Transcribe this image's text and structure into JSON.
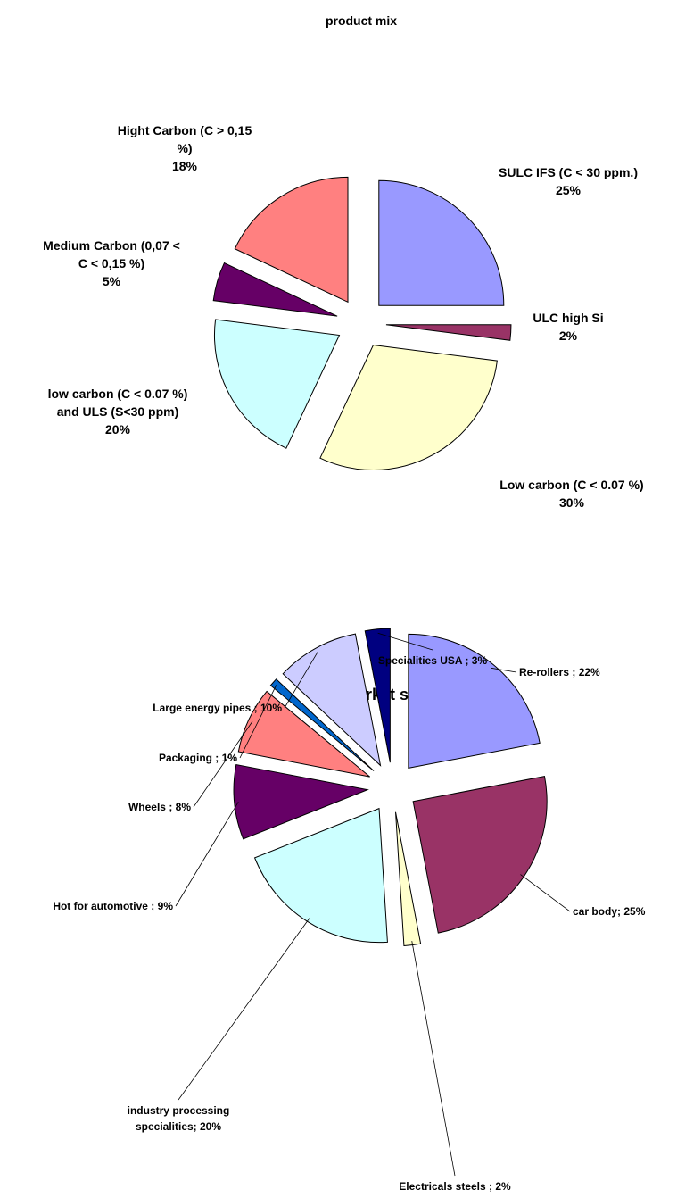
{
  "chart_data": [
    {
      "type": "pie",
      "title": "product mix",
      "categories": [
        [
          "SULC IFS (C < 30 ppm.)"
        ],
        [
          "ULC high Si"
        ],
        [
          "Low carbon (C < 0.07 %)"
        ],
        [
          "low carbon (C < 0.07 %)",
          "and ULS (S<30 ppm)"
        ],
        [
          "Medium Carbon    (0,07 <",
          "C < 0,15 %)"
        ],
        [
          "Hight Carbon    (C > 0,15",
          "%)"
        ]
      ],
      "values": [
        25,
        2,
        30,
        20,
        5,
        18
      ],
      "value_labels": [
        "25%",
        "2%",
        "30%",
        "20%",
        "5%",
        "18%"
      ],
      "colors": [
        "#9999ff",
        "#993366",
        "#ffffcc",
        "#ccffff",
        "#660066",
        "#ff8080"
      ]
    },
    {
      "type": "pie",
      "title": "market share",
      "categories": [
        [
          "Re-rollers ;"
        ],
        [
          "car body;"
        ],
        [
          "Electricals steels ;"
        ],
        [
          "industry processing",
          "specialities;"
        ],
        [
          "Hot for automotive ;"
        ],
        [
          "Wheels ;"
        ],
        [
          "Packaging ;"
        ],
        [
          "Large energy pipes ;"
        ],
        [
          "Specialities USA ;"
        ]
      ],
      "values": [
        22,
        25,
        2,
        20,
        9,
        8,
        1,
        10,
        3
      ],
      "value_labels": [
        "22%",
        "25%",
        "2%",
        "20%",
        "9%",
        "8%",
        "1%",
        "10%",
        "3%"
      ],
      "colors": [
        "#9999ff",
        "#993366",
        "#ffffcc",
        "#ccffff",
        "#660066",
        "#ff8080",
        "#0066cc",
        "#ccccff",
        "#000080"
      ]
    }
  ]
}
